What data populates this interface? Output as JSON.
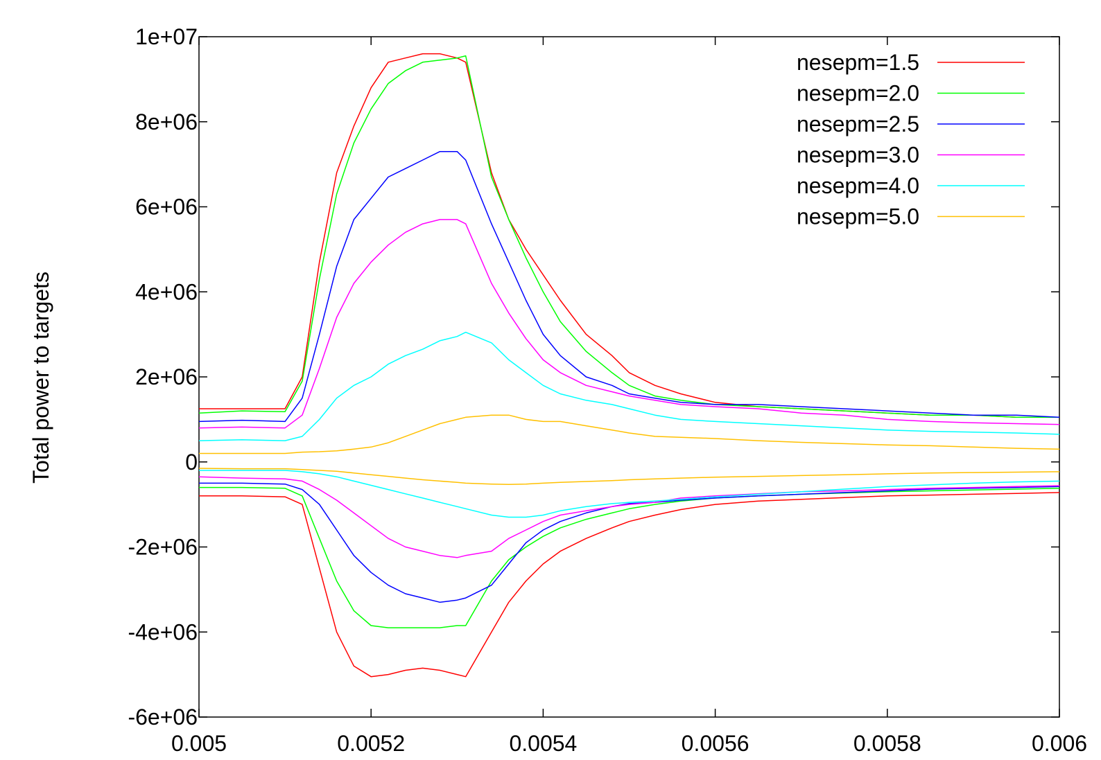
{
  "chart_data": {
    "type": "line",
    "title": "",
    "xlabel": "",
    "ylabel": "Total power to targets",
    "xlim": [
      0.005,
      0.006
    ],
    "ylim": [
      -6000000,
      10000000
    ],
    "x_ticks": [
      0.005,
      0.0052,
      0.0054,
      0.0056,
      0.0058,
      0.006
    ],
    "x_tick_labels": [
      "0.005",
      "0.0052",
      "0.0054",
      "0.0056",
      "0.0058",
      "0.006"
    ],
    "y_ticks": [
      -6000000,
      -4000000,
      -2000000,
      0,
      2000000,
      4000000,
      6000000,
      8000000,
      10000000
    ],
    "y_tick_labels": [
      "-6e+06",
      "-4e+06",
      "-2e+06",
      "0",
      "2e+06",
      "4e+06",
      "6e+06",
      "8e+06",
      "1e+07"
    ],
    "grid": false,
    "legend_position": "top-right",
    "x": [
      0.005,
      0.00505,
      0.0051,
      0.00512,
      0.00514,
      0.00516,
      0.00518,
      0.0052,
      0.00522,
      0.00524,
      0.00526,
      0.00528,
      0.0053,
      0.00531,
      0.00534,
      0.00536,
      0.00538,
      0.0054,
      0.00542,
      0.00545,
      0.00548,
      0.0055,
      0.00553,
      0.00556,
      0.0056,
      0.00565,
      0.0057,
      0.00575,
      0.0058,
      0.00585,
      0.0059,
      0.00595,
      0.006
    ],
    "series": [
      {
        "name": "nesepm=1.5",
        "color": "#ff0000",
        "upper": [
          1250000,
          1250000,
          1250000,
          2000000,
          4700000,
          6800000,
          7900000,
          8800000,
          9400000,
          9500000,
          9600000,
          9600000,
          9500000,
          9400000,
          6800000,
          5700000,
          5000000,
          4400000,
          3800000,
          3000000,
          2500000,
          2100000,
          1800000,
          1600000,
          1400000,
          1300000,
          1250000,
          1200000,
          1150000,
          1100000,
          1100000,
          1050000,
          1050000
        ],
        "lower": [
          -800000,
          -800000,
          -820000,
          -1000000,
          -2500000,
          -4000000,
          -4800000,
          -5050000,
          -5000000,
          -4900000,
          -4850000,
          -4900000,
          -5000000,
          -5050000,
          -4000000,
          -3300000,
          -2800000,
          -2400000,
          -2100000,
          -1800000,
          -1550000,
          -1400000,
          -1250000,
          -1120000,
          -1000000,
          -920000,
          -880000,
          -840000,
          -800000,
          -780000,
          -760000,
          -740000,
          -720000
        ]
      },
      {
        "name": "nesepm=2.0",
        "color": "#00ff00",
        "upper": [
          1150000,
          1200000,
          1180000,
          1900000,
          4300000,
          6300000,
          7500000,
          8300000,
          8900000,
          9200000,
          9400000,
          9450000,
          9500000,
          9550000,
          6700000,
          5700000,
          4800000,
          4000000,
          3300000,
          2600000,
          2100000,
          1800000,
          1550000,
          1450000,
          1350000,
          1300000,
          1250000,
          1200000,
          1150000,
          1100000,
          1100000,
          1050000,
          1050000
        ],
        "lower": [
          -600000,
          -600000,
          -620000,
          -800000,
          -1800000,
          -2800000,
          -3500000,
          -3850000,
          -3900000,
          -3900000,
          -3900000,
          -3900000,
          -3850000,
          -3850000,
          -2800000,
          -2300000,
          -2000000,
          -1750000,
          -1550000,
          -1350000,
          -1200000,
          -1100000,
          -1000000,
          -920000,
          -850000,
          -800000,
          -760000,
          -730000,
          -700000,
          -680000,
          -660000,
          -640000,
          -620000
        ]
      },
      {
        "name": "nesepm=2.5",
        "color": "#0000ff",
        "upper": [
          950000,
          980000,
          950000,
          1500000,
          3000000,
          4600000,
          5700000,
          6200000,
          6700000,
          6900000,
          7100000,
          7300000,
          7300000,
          7100000,
          5600000,
          4700000,
          3800000,
          3000000,
          2500000,
          2000000,
          1800000,
          1600000,
          1500000,
          1400000,
          1350000,
          1350000,
          1300000,
          1250000,
          1200000,
          1150000,
          1100000,
          1100000,
          1050000
        ],
        "lower": [
          -500000,
          -500000,
          -520000,
          -650000,
          -1000000,
          -1600000,
          -2200000,
          -2600000,
          -2900000,
          -3100000,
          -3200000,
          -3300000,
          -3250000,
          -3200000,
          -2900000,
          -2400000,
          -1900000,
          -1600000,
          -1400000,
          -1200000,
          -1050000,
          -980000,
          -950000,
          -900000,
          -850000,
          -800000,
          -760000,
          -720000,
          -680000,
          -640000,
          -620000,
          -600000,
          -580000
        ]
      },
      {
        "name": "nesepm=3.0",
        "color": "#ff00ff",
        "upper": [
          800000,
          820000,
          800000,
          1100000,
          2200000,
          3400000,
          4200000,
          4700000,
          5100000,
          5400000,
          5600000,
          5700000,
          5700000,
          5600000,
          4200000,
          3500000,
          2900000,
          2400000,
          2100000,
          1800000,
          1650000,
          1550000,
          1450000,
          1350000,
          1300000,
          1250000,
          1150000,
          1100000,
          1000000,
          950000,
          920000,
          900000,
          880000
        ],
        "lower": [
          -350000,
          -380000,
          -400000,
          -450000,
          -650000,
          -900000,
          -1200000,
          -1500000,
          -1800000,
          -2000000,
          -2100000,
          -2200000,
          -2250000,
          -2200000,
          -2100000,
          -1800000,
          -1600000,
          -1400000,
          -1250000,
          -1150000,
          -1050000,
          -1000000,
          -950000,
          -850000,
          -800000,
          -750000,
          -700000,
          -680000,
          -650000,
          -620000,
          -600000,
          -580000,
          -560000
        ]
      },
      {
        "name": "nesepm=4.0",
        "color": "#00ffff",
        "upper": [
          500000,
          520000,
          500000,
          600000,
          1000000,
          1500000,
          1800000,
          2000000,
          2300000,
          2500000,
          2650000,
          2850000,
          2950000,
          3050000,
          2800000,
          2400000,
          2100000,
          1800000,
          1600000,
          1450000,
          1350000,
          1250000,
          1100000,
          1000000,
          950000,
          900000,
          850000,
          800000,
          750000,
          720000,
          700000,
          680000,
          650000
        ],
        "lower": [
          -200000,
          -200000,
          -200000,
          -230000,
          -280000,
          -350000,
          -450000,
          -550000,
          -650000,
          -750000,
          -850000,
          -950000,
          -1050000,
          -1100000,
          -1250000,
          -1300000,
          -1300000,
          -1250000,
          -1150000,
          -1050000,
          -980000,
          -950000,
          -920000,
          -880000,
          -820000,
          -760000,
          -700000,
          -640000,
          -580000,
          -540000,
          -500000,
          -470000,
          -450000
        ]
      },
      {
        "name": "nesepm=5.0",
        "color": "#ffc000",
        "upper": [
          200000,
          200000,
          200000,
          230000,
          240000,
          260000,
          300000,
          350000,
          450000,
          600000,
          750000,
          900000,
          1000000,
          1050000,
          1100000,
          1100000,
          1000000,
          950000,
          950000,
          850000,
          750000,
          680000,
          600000,
          580000,
          550000,
          500000,
          460000,
          430000,
          400000,
          380000,
          350000,
          320000,
          300000
        ],
        "lower": [
          -150000,
          -160000,
          -160000,
          -180000,
          -200000,
          -220000,
          -260000,
          -300000,
          -340000,
          -380000,
          -420000,
          -450000,
          -480000,
          -500000,
          -520000,
          -530000,
          -520000,
          -500000,
          -480000,
          -460000,
          -440000,
          -420000,
          -400000,
          -380000,
          -360000,
          -340000,
          -320000,
          -300000,
          -280000,
          -260000,
          -250000,
          -240000,
          -230000
        ]
      }
    ]
  }
}
